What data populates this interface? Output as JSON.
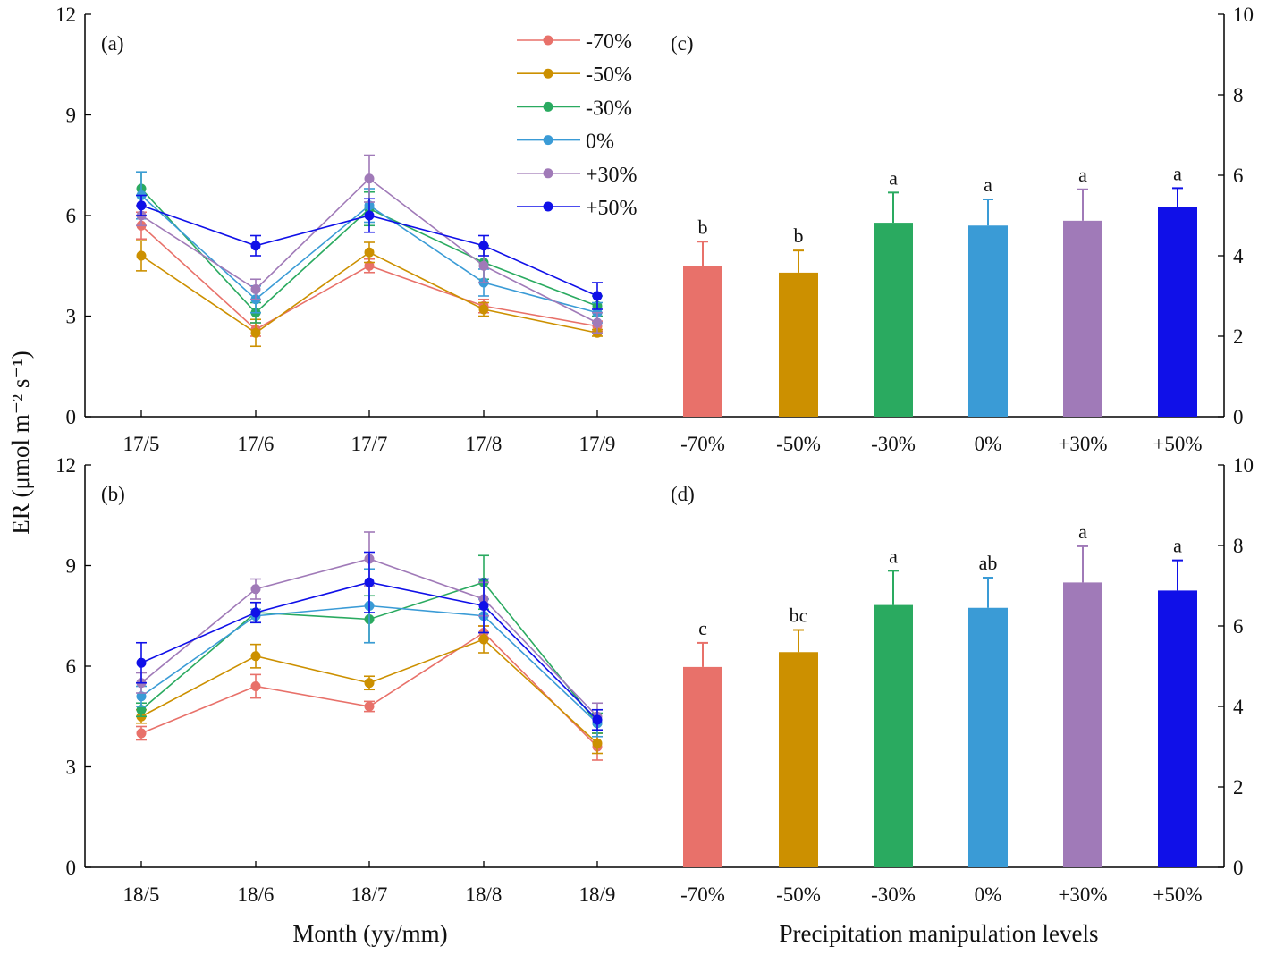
{
  "figure": {
    "y_axis_title": "ER (μmol m⁻² s⁻¹)",
    "x_axis_title_left": "Month (yy/mm)",
    "x_axis_title_right": "Precipitation manipulation levels"
  },
  "legend": [
    {
      "label": "-70%",
      "color": "#e8716a"
    },
    {
      "label": "-50%",
      "color": "#cc9000"
    },
    {
      "label": "-30%",
      "color": "#2aaa60"
    },
    {
      "label": "0%",
      "color": "#3a9bd6"
    },
    {
      "label": "+30%",
      "color": "#a07ab8"
    },
    {
      "label": "+50%",
      "color": "#1010e8"
    }
  ],
  "chart_data": [
    {
      "panel": "(a)",
      "type": "line",
      "x": [
        "17/5",
        "17/6",
        "17/7",
        "17/8",
        "17/9"
      ],
      "ylim": [
        0,
        12
      ],
      "yticks": [
        0,
        3,
        6,
        9,
        12
      ],
      "series": [
        {
          "name": "-70%",
          "values": [
            5.7,
            2.6,
            4.5,
            3.3,
            2.7
          ],
          "errors": [
            0.4,
            0.2,
            0.2,
            0.2,
            0.15
          ]
        },
        {
          "name": "-50%",
          "values": [
            4.8,
            2.5,
            4.9,
            3.2,
            2.5
          ],
          "errors": [
            0.45,
            0.4,
            0.3,
            0.2,
            0.1
          ]
        },
        {
          "name": "-30%",
          "values": [
            6.8,
            3.1,
            6.2,
            4.6,
            3.3
          ],
          "errors": [
            0.5,
            0.3,
            0.5,
            0.5,
            0.3
          ]
        },
        {
          "name": "0%",
          "values": [
            6.6,
            3.5,
            6.3,
            4.0,
            3.1
          ],
          "errors": [
            0.7,
            0.4,
            0.5,
            0.4,
            0.3
          ]
        },
        {
          "name": "+30%",
          "values": [
            6.0,
            3.8,
            7.1,
            4.5,
            2.8
          ],
          "errors": [
            0.3,
            0.3,
            0.7,
            0.5,
            0.3
          ]
        },
        {
          "name": "+50%",
          "values": [
            6.3,
            5.1,
            6.0,
            5.1,
            3.6
          ],
          "errors": [
            0.3,
            0.3,
            0.5,
            0.3,
            0.4
          ]
        }
      ]
    },
    {
      "panel": "(b)",
      "type": "line",
      "x": [
        "18/5",
        "18/6",
        "18/7",
        "18/8",
        "18/9"
      ],
      "ylim": [
        0,
        12
      ],
      "yticks": [
        0,
        3,
        6,
        9,
        12
      ],
      "series": [
        {
          "name": "-70%",
          "values": [
            4.0,
            5.4,
            4.8,
            7.0,
            3.6
          ],
          "errors": [
            0.2,
            0.35,
            0.15,
            0.2,
            0.4
          ]
        },
        {
          "name": "-50%",
          "values": [
            4.5,
            6.3,
            5.5,
            6.8,
            3.7
          ],
          "errors": [
            0.2,
            0.35,
            0.2,
            0.4,
            0.3
          ]
        },
        {
          "name": "-30%",
          "values": [
            4.7,
            7.6,
            7.4,
            8.5,
            4.3
          ],
          "errors": [
            0.2,
            0.3,
            0.7,
            0.8,
            0.3
          ]
        },
        {
          "name": "0%",
          "values": [
            5.1,
            7.5,
            7.8,
            7.5,
            4.3
          ],
          "errors": [
            0.3,
            0.2,
            1.1,
            0.5,
            0.4
          ]
        },
        {
          "name": "+30%",
          "values": [
            5.5,
            8.3,
            9.2,
            8.0,
            4.5
          ],
          "errors": [
            0.3,
            0.3,
            0.8,
            0.5,
            0.4
          ]
        },
        {
          "name": "+50%",
          "values": [
            6.1,
            7.6,
            8.5,
            7.8,
            4.4
          ],
          "errors": [
            0.6,
            0.3,
            0.9,
            0.8,
            0.3
          ]
        }
      ]
    },
    {
      "panel": "(c)",
      "type": "bar",
      "categories": [
        "-70%",
        "-50%",
        "-30%",
        "0%",
        "+30%",
        "+50%"
      ],
      "values": [
        3.75,
        3.58,
        4.82,
        4.75,
        4.87,
        5.2
      ],
      "errors": [
        0.6,
        0.55,
        0.75,
        0.65,
        0.78,
        0.48
      ],
      "letters": [
        "b",
        "b",
        "a",
        "a",
        "a",
        "a"
      ],
      "ylim": [
        0,
        10
      ],
      "yticks": [
        0,
        2,
        4,
        6,
        8,
        10
      ]
    },
    {
      "panel": "(d)",
      "type": "bar",
      "categories": [
        "-70%",
        "-50%",
        "-30%",
        "0%",
        "+30%",
        "+50%"
      ],
      "values": [
        4.98,
        5.35,
        6.52,
        6.45,
        7.08,
        6.88
      ],
      "errors": [
        0.6,
        0.55,
        0.85,
        0.75,
        0.9,
        0.75
      ],
      "letters": [
        "c",
        "bc",
        "a",
        "ab",
        "a",
        "a"
      ],
      "ylim": [
        0,
        10
      ],
      "yticks": [
        0,
        2,
        4,
        6,
        8,
        10
      ]
    }
  ]
}
